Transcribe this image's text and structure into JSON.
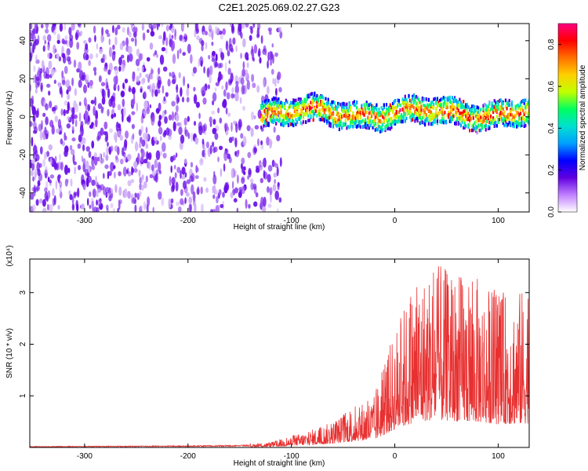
{
  "title": "C2E1.2025.069.02.27.G23",
  "chart_data": [
    {
      "type": "heatmap",
      "name": "spectrogram",
      "xlabel": "Height of straight line (km)",
      "ylabel": "Frequency (Hz)",
      "xlim": [
        -353,
        130
      ],
      "ylim": [
        -50,
        49
      ],
      "xticks": [
        -300,
        -200,
        -100,
        0,
        100
      ],
      "yticks": [
        -40,
        -20,
        0,
        20,
        40
      ],
      "colorbar": {
        "label": "Normalized spectral amplitude",
        "range": [
          0.0,
          0.9
        ],
        "ticks": [
          0.0,
          0.2,
          0.4,
          0.6,
          0.8
        ],
        "tick_labels": [
          "0.0",
          "0.2",
          "0.4",
          "0.6",
          "0.8"
        ],
        "colors": [
          "#ffffff",
          "#c080ff",
          "#6000e0",
          "#0000ff",
          "#00a0ff",
          "#00e0d0",
          "#00ff60",
          "#c0ff00",
          "#ffd000",
          "#ff7000",
          "#ff0000",
          "#ff0080"
        ]
      },
      "regions": [
        {
          "x_range": [
            -353,
            -130
          ],
          "f_range": [
            -50,
            49
          ],
          "level_range": [
            0.0,
            0.12
          ],
          "pattern": "noise"
        },
        {
          "x_range": [
            -130,
            130
          ],
          "f_center": 2,
          "f_halfwidth": 7,
          "level_range": [
            0.1,
            0.9
          ],
          "pattern": "signal-band"
        }
      ]
    },
    {
      "type": "line",
      "name": "snr",
      "xlabel": "Height of straight line (km)",
      "ylabel": "SNR (10 * v/v)",
      "y_multiplier_label": "(x10⁴)",
      "xlim": [
        -353,
        130
      ],
      "ylim": [
        0,
        3.65
      ],
      "xticks": [
        -300,
        -200,
        -100,
        0,
        100
      ],
      "yticks": [
        1,
        2,
        3
      ],
      "color": "#e83030",
      "envelope": {
        "x": [
          -353,
          -200,
          -140,
          -120,
          -100,
          -80,
          -60,
          -40,
          -20,
          0,
          20,
          40,
          60,
          80,
          100,
          130
        ],
        "y_max": [
          0.03,
          0.05,
          0.07,
          0.1,
          0.22,
          0.35,
          0.5,
          0.8,
          1.0,
          2.3,
          3.3,
          3.55,
          3.4,
          3.3,
          3.0,
          3.1
        ]
      }
    }
  ]
}
